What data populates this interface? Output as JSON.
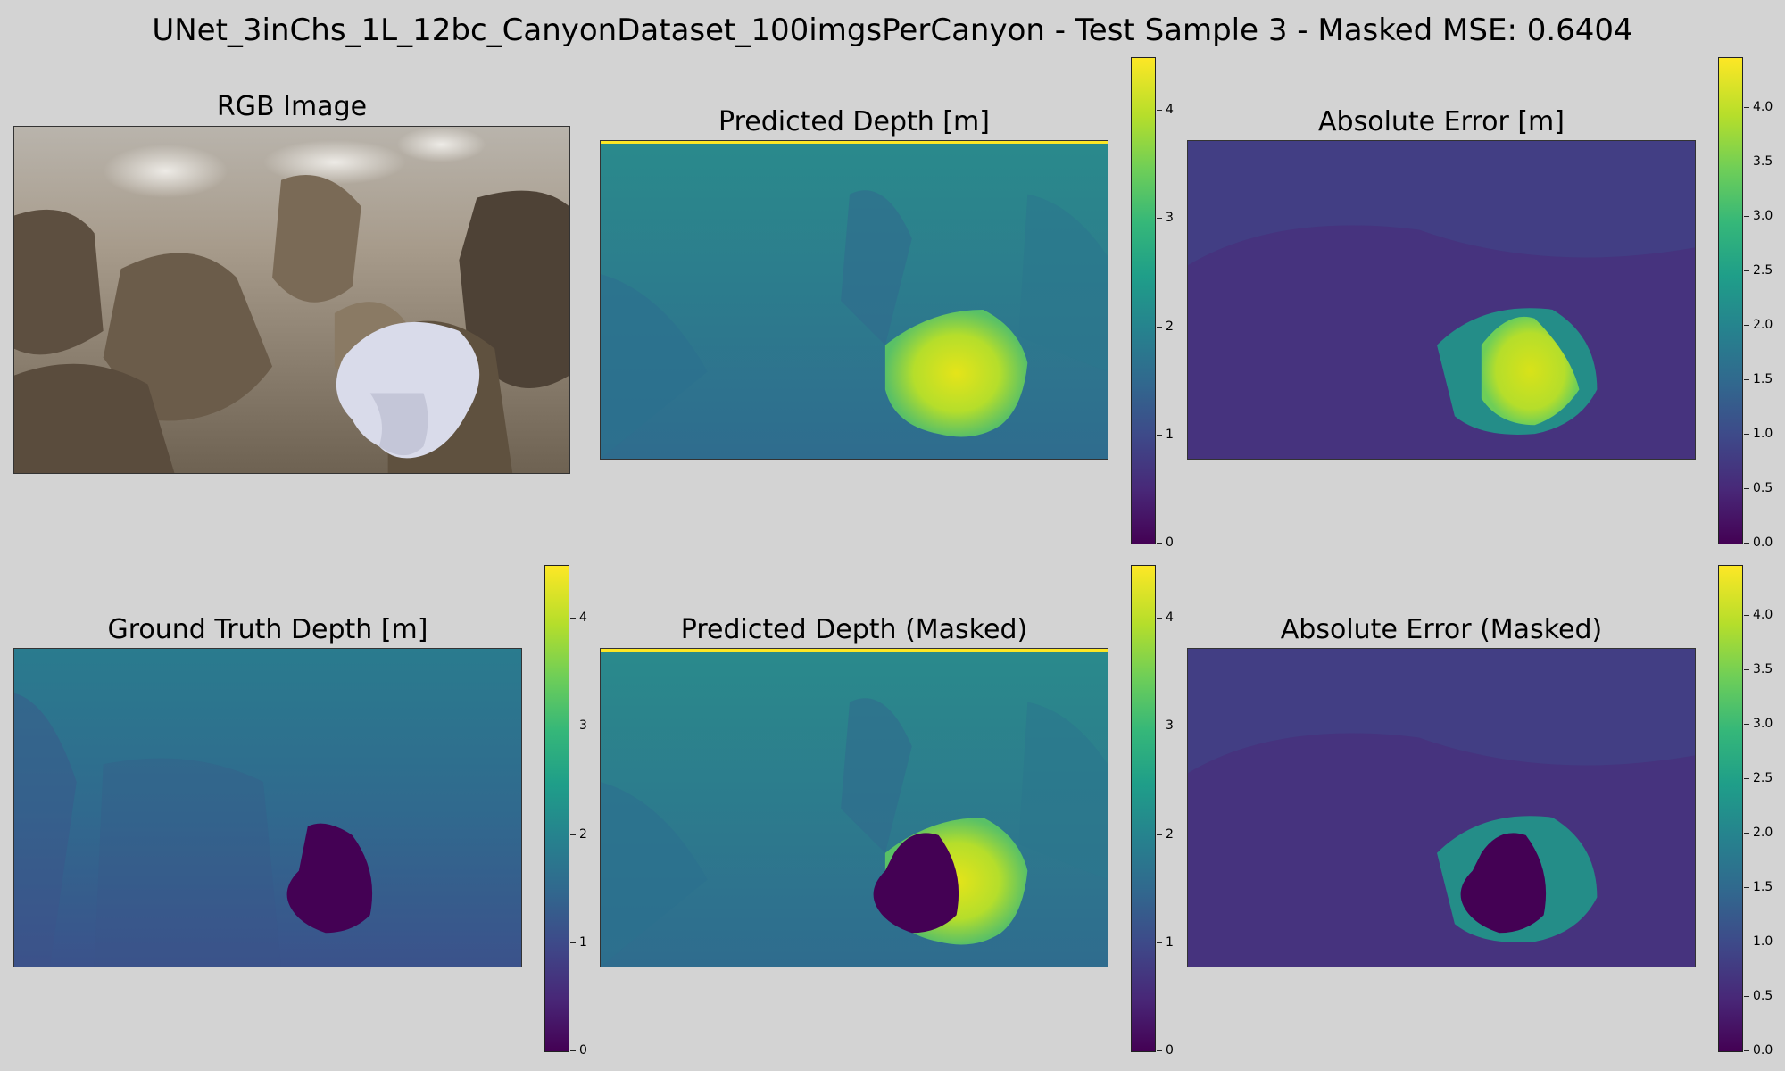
{
  "figure": {
    "title": "UNet_3inChs_1L_12bc_CanyonDataset_100imgsPerCanyon - Test Sample 3 - Masked MSE: 0.6404"
  },
  "panels": {
    "rgb": {
      "title": "RGB Image"
    },
    "pred": {
      "title": "Predicted Depth [m]"
    },
    "abs_err": {
      "title": "Absolute Error [m]"
    },
    "gt": {
      "title": "Ground Truth Depth [m]"
    },
    "pred_masked": {
      "title": "Predicted Depth (Masked)"
    },
    "abs_err_masked": {
      "title": "Absolute Error (Masked)"
    }
  },
  "colorbars": {
    "depth": {
      "ticks": [
        "0",
        "1",
        "2",
        "3",
        "4"
      ],
      "max": 4.5
    },
    "error": {
      "ticks": [
        "0.0",
        "0.5",
        "1.0",
        "1.5",
        "2.0",
        "2.5",
        "3.0",
        "3.5",
        "4.0"
      ],
      "max": 4.4
    }
  },
  "colors": {
    "background": "#d3d3d3",
    "colormap": "viridis"
  }
}
